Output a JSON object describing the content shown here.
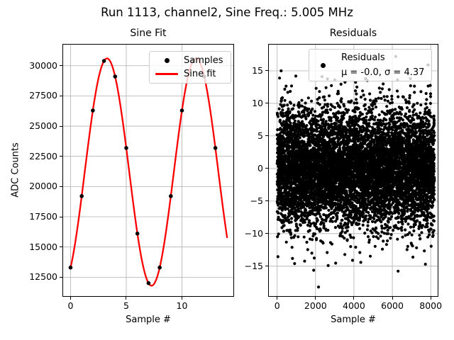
{
  "figure": {
    "title": "Run 1113, channel2, Sine Freq.: 5.005 MHz",
    "background": "#ffffff"
  },
  "colors": {
    "fit_line": "#ff0000",
    "marker": "#000000",
    "grid": "#b0b0b0",
    "axes_edge": "#000000",
    "legend_border": "#cccccc"
  },
  "chart_data": [
    {
      "id": "sine_fit",
      "type": "scatter+line",
      "title": "Sine Fit",
      "xlabel": "Sample #",
      "ylabel": "ADC Counts",
      "xlim": [
        -0.73,
        14.68
      ],
      "ylim": [
        10880,
        31800
      ],
      "xticks": [
        0,
        5,
        10
      ],
      "yticks": [
        12500,
        15000,
        17500,
        20000,
        22500,
        25000,
        27500,
        30000
      ],
      "grid": true,
      "legend": {
        "position": "upper right",
        "entries": [
          {
            "marker": "dot",
            "label": "Samples"
          },
          {
            "marker": "line",
            "label": "Sine fit"
          }
        ]
      },
      "samples": {
        "x": [
          0,
          1,
          2,
          3,
          4,
          5,
          6,
          7,
          8,
          9,
          10,
          11,
          12,
          13
        ],
        "y": [
          13300,
          19210,
          26290,
          30390,
          29100,
          23190,
          16110,
          12010,
          13300,
          19210,
          26290,
          30390,
          29100,
          23190
        ]
      },
      "sine_fit": {
        "offset": 21200,
        "amplitude": 9400,
        "omega": 0.7854,
        "phase": -0.9985,
        "x_start": 0,
        "x_end": 14.05,
        "line_width": 2.3
      },
      "marker_radius": 2.8
    },
    {
      "id": "residuals",
      "type": "scatter",
      "title": "Residuals",
      "xlabel": "Sample #",
      "ylabel": "",
      "xlim": [
        -470,
        8400
      ],
      "ylim": [
        -19.7,
        19.13
      ],
      "xticks": [
        0,
        2000,
        4000,
        6000,
        8000
      ],
      "yticks": [
        -15,
        -10,
        -5,
        0,
        5,
        10,
        15
      ],
      "grid": true,
      "legend": {
        "position": "upper right",
        "marker": "dot",
        "lines": [
          "Residuals",
          "μ = -0.0, σ = 4.37"
        ]
      },
      "stats": {
        "mu": -0.0,
        "sigma": 4.37
      },
      "distribution": {
        "n": 8192,
        "x_min": 0,
        "x_max": 8191,
        "mean": 0,
        "sigma": 4.37,
        "seed": 1113
      },
      "notable_points": [
        [
          207,
          15.0
        ],
        [
          910,
          -14.6
        ],
        [
          2155,
          -18.2
        ],
        [
          2340,
          14.1
        ],
        [
          3000,
          13.6
        ],
        [
          4600,
          13.8
        ],
        [
          6180,
          17.2
        ],
        [
          6270,
          13.6
        ],
        [
          6940,
          13.8
        ],
        [
          7725,
          -14.7
        ],
        [
          7850,
          15.9
        ]
      ],
      "marker_radius": 2.1
    }
  ]
}
